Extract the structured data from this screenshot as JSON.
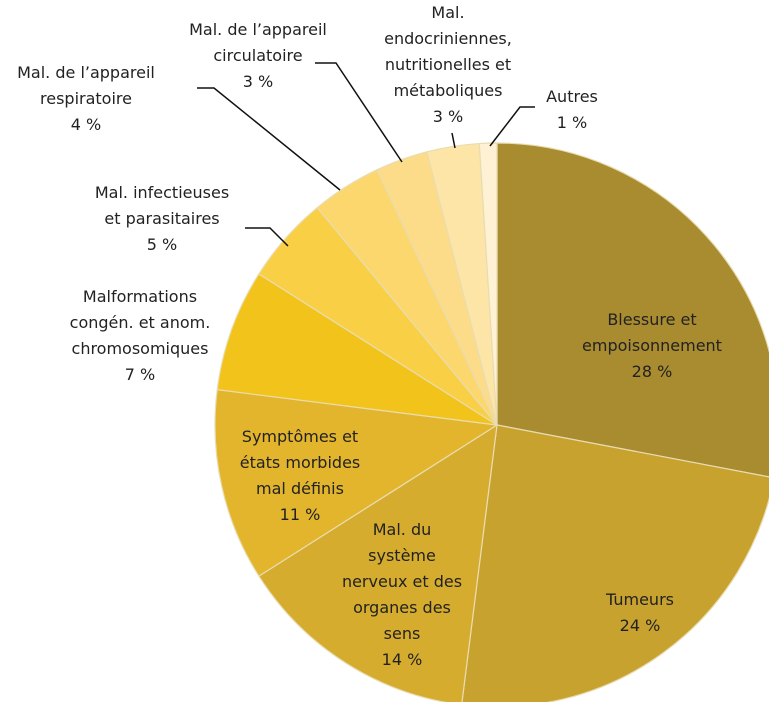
{
  "chart_data": {
    "type": "pie",
    "categories": [
      "Blessure et\nempoisonnement",
      "Tumeurs",
      "Mal. du\nsystème\nnerveux et des\norganes des\nsens",
      "Symptômes et\nétats morbides\nmal définis",
      "Malformations\ncongén. et anom.\nchromosomiques",
      "Mal. infectieuses\net parasitaires",
      "Mal. de l’appareil\nrespiratoire",
      "Mal. de l’appareil\ncirculatoire",
      "Mal.\nendocriniennes,\nnutritionelles et\nmétaboliques",
      "Autres"
    ],
    "values": [
      28,
      24,
      14,
      11,
      7,
      5,
      4,
      3,
      3,
      1
    ],
    "value_labels": [
      "28 %",
      "24 %",
      "14 %",
      "11 %",
      "7 %",
      "5 %",
      "4 %",
      "3 %",
      "3 %",
      "1 %"
    ],
    "colors": [
      "#a98b30",
      "#c8a22f",
      "#d6ac2e",
      "#e3b52d",
      "#f2c31a",
      "#f9cf45",
      "#fbd76e",
      "#fcdc88",
      "#fde5a8",
      "#fef1d4"
    ]
  }
}
